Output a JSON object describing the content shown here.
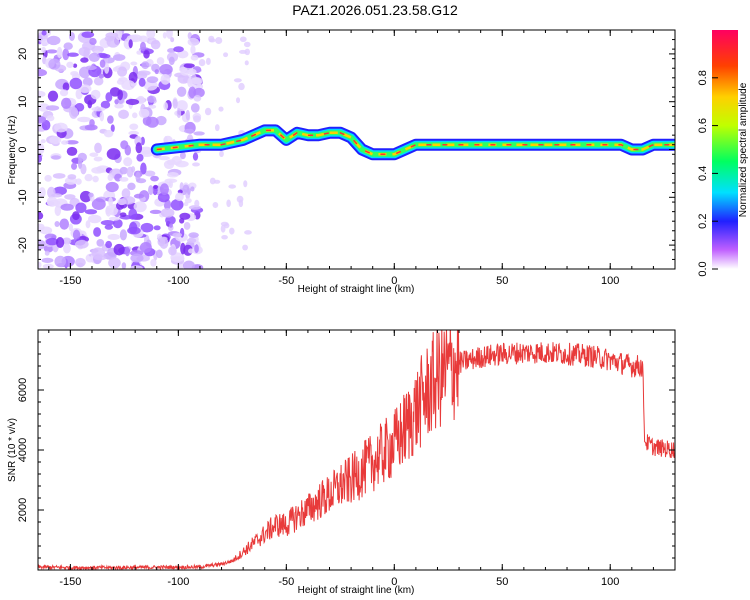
{
  "title": "PAZ1.2026.051.23.58.G12",
  "chart_data": [
    {
      "type": "heatmap",
      "xlabel": "Height of straight line (km)",
      "ylabel": "Frequency (Hz)",
      "xlim": [
        -165,
        130
      ],
      "ylim": [
        -25,
        25
      ],
      "x_ticks": [
        "-150",
        "-100",
        "-50",
        "0",
        "50",
        "100"
      ],
      "y_ticks": [
        "20",
        "10",
        "0",
        "-10",
        "-20"
      ],
      "colorbar": {
        "label": "Normalized spectral amplitude",
        "range": [
          0,
          1
        ],
        "ticks": [
          "0.0",
          "0.2",
          "0.4",
          "0.6",
          "0.8"
        ]
      },
      "ridge": {
        "x": [
          -110,
          -100,
          -90,
          -80,
          -70,
          -60,
          -55,
          -50,
          -45,
          -40,
          -35,
          -30,
          -25,
          -20,
          -15,
          -10,
          -5,
          0,
          5,
          10,
          20,
          30,
          40,
          50,
          60,
          70,
          80,
          90,
          100,
          105,
          110,
          115,
          120,
          130
        ],
        "y": [
          0,
          0.5,
          1,
          1,
          2,
          4,
          4,
          2,
          3.5,
          3,
          3,
          3.5,
          3.5,
          2.5,
          0,
          -1,
          -1,
          -1,
          0,
          1,
          1,
          1,
          1,
          1,
          1,
          1,
          1,
          1,
          1,
          1,
          0,
          0,
          1,
          1
        ]
      }
    },
    {
      "type": "line",
      "xlabel": "Height of straight line (km)",
      "ylabel": "SNR (10 * v/v)",
      "xlim": [
        -165,
        130
      ],
      "ylim": [
        0,
        8000
      ],
      "x_ticks": [
        "-150",
        "-100",
        "-50",
        "0",
        "50",
        "100"
      ],
      "y_ticks": [
        "2000",
        "4000",
        "6000"
      ],
      "series": [
        {
          "name": "SNR",
          "color": "#e83a3a",
          "x": [
            -165,
            -150,
            -130,
            -110,
            -90,
            -80,
            -75,
            -70,
            -65,
            -60,
            -55,
            -50,
            -45,
            -40,
            -35,
            -30,
            -25,
            -20,
            -15,
            -10,
            -5,
            0,
            5,
            10,
            15,
            20,
            25,
            30,
            40,
            50,
            60,
            70,
            80,
            90,
            100,
            110,
            115,
            116,
            120,
            130
          ],
          "y": [
            100,
            80,
            80,
            90,
            100,
            200,
            300,
            600,
            900,
            1200,
            1500,
            1500,
            1800,
            2000,
            2300,
            2500,
            2800,
            3000,
            3300,
            3600,
            3900,
            4200,
            4700,
            5300,
            5900,
            6400,
            6700,
            6900,
            7100,
            7200,
            7250,
            7250,
            7200,
            7150,
            7000,
            6800,
            6800,
            4300,
            4100,
            4000
          ]
        }
      ]
    }
  ]
}
